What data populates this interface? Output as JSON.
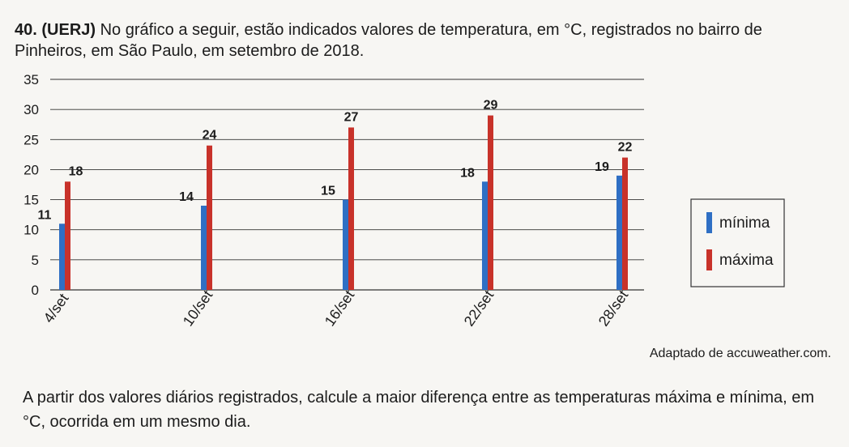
{
  "question": {
    "number": "40.",
    "source": "(UERJ)",
    "text": "No gráfico a seguir, estão indicados valores de temperatura, em °C, registrados no bairro de Pinheiros, em São Paulo, em setembro de 2018."
  },
  "chart_data": {
    "type": "bar",
    "title": "",
    "xlabel": "",
    "ylabel": "",
    "ylim": [
      0,
      35
    ],
    "yticks": [
      0,
      5,
      10,
      15,
      20,
      25,
      30,
      35
    ],
    "categories": [
      "4/set",
      "10/set",
      "16/set",
      "22/set",
      "28/set"
    ],
    "series": [
      {
        "name": "mínima",
        "color": "#2f6fc4",
        "values": [
          11,
          14,
          15,
          18,
          19
        ]
      },
      {
        "name": "máxima",
        "color": "#c8322a",
        "values": [
          18,
          24,
          27,
          29,
          22
        ]
      }
    ],
    "legend_position": "right",
    "grid": true
  },
  "source_note": "Adaptado de accuweather.com.",
  "prompt": "A partir dos valores diários registrados, calcule a maior diferença entre as temperaturas máxima e mínima, em °C, ocorrida em um mesmo dia."
}
